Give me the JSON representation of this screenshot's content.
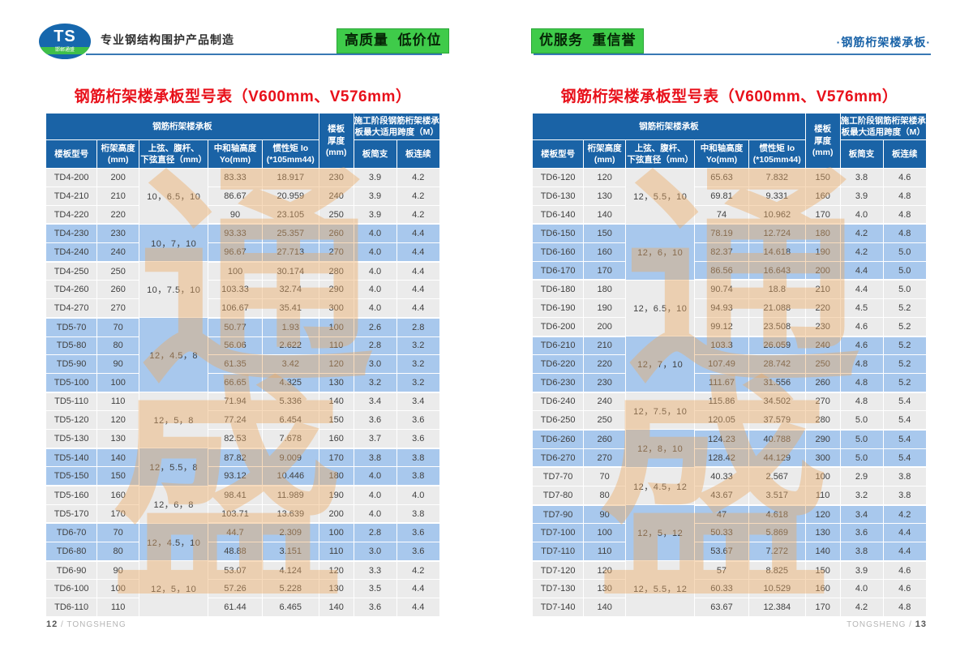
{
  "page": {
    "header": {
      "logo_text": "TS",
      "logo_subtext": "邯郸通盛",
      "tagline": "专业钢结构围护产品制造",
      "badge_quality": "高质量  低价位",
      "badge_service": "优服务  重信誉",
      "section_label": "·钢筋桁架楼承板·"
    },
    "footer": {
      "left_page_number": "12",
      "left_brand": " / TONGSHENG",
      "right_brand": "TONGSHENG / ",
      "right_page_number": "13"
    },
    "watermark_chars": [
      "通",
      "盛"
    ]
  },
  "table_header": {
    "group_title": "钢筋桁架楼承板",
    "col_model": "楼板型号",
    "col_truss_height": "桁架高度\n(mm)",
    "col_diameter": "上弦、腹杆、\n下弦直径（mm）",
    "col_neutral_axis": "中和轴高度\nYo(mm)",
    "col_inertia": "惯性矩 Io\n(*105mm44)",
    "col_thickness": "楼板\n厚度\n(mm)",
    "col_span_title": "施工阶段钢筋桁架楼承\n板最大适用跨度（M）",
    "col_simple": "板简支",
    "col_continuous": "板连续"
  },
  "tables": [
    {
      "title": "钢筋桁架楼承板型号表（V600mm、V576mm）",
      "groups": [
        {
          "diameter": "10，6.5，10",
          "rows": [
            [
              "TD4-200",
              "200",
              "83.33",
              "18.917",
              "230",
              "3.9",
              "4.2"
            ],
            [
              "TD4-210",
              "210",
              "86.67",
              "20.959",
              "240",
              "3.9",
              "4.2"
            ],
            [
              "TD4-220",
              "220",
              "90",
              "23.105",
              "250",
              "3.9",
              "4.2"
            ]
          ]
        },
        {
          "diameter": "10，7，10",
          "rows": [
            [
              "TD4-230",
              "230",
              "93.33",
              "25.357",
              "260",
              "4.0",
              "4.4"
            ],
            [
              "TD4-240",
              "240",
              "96.67",
              "27.713",
              "270",
              "4.0",
              "4.4"
            ]
          ]
        },
        {
          "diameter": "10，7.5，10",
          "rows": [
            [
              "TD4-250",
              "250",
              "100",
              "30.174",
              "280",
              "4.0",
              "4.4"
            ],
            [
              "TD4-260",
              "260",
              "103.33",
              "32.74",
              "290",
              "4.0",
              "4.4"
            ],
            [
              "TD4-270",
              "270",
              "106.67",
              "35.41",
              "300",
              "4.0",
              "4.4"
            ]
          ]
        },
        {
          "diameter": "12，4.5，8",
          "rows": [
            [
              "TD5-70",
              "70",
              "50.77",
              "1.93",
              "100",
              "2.6",
              "2.8"
            ],
            [
              "TD5-80",
              "80",
              "56.06",
              "2.622",
              "110",
              "2.8",
              "3.2"
            ],
            [
              "TD5-90",
              "90",
              "61.35",
              "3.42",
              "120",
              "3.0",
              "3.2"
            ],
            [
              "TD5-100",
              "100",
              "66.65",
              "4.325",
              "130",
              "3.2",
              "3.2"
            ]
          ]
        },
        {
          "diameter": "12，5，8",
          "rows": [
            [
              "TD5-110",
              "110",
              "71.94",
              "5.336",
              "140",
              "3.4",
              "3.4"
            ],
            [
              "TD5-120",
              "120",
              "77.24",
              "6.454",
              "150",
              "3.6",
              "3.6"
            ],
            [
              "TD5-130",
              "130",
              "82.53",
              "7.678",
              "160",
              "3.7",
              "3.6"
            ]
          ]
        },
        {
          "diameter": "12，5.5，8",
          "rows": [
            [
              "TD5-140",
              "140",
              "87.82",
              "9.009",
              "170",
              "3.8",
              "3.8"
            ],
            [
              "TD5-150",
              "150",
              "93.12",
              "10.446",
              "180",
              "4.0",
              "3.8"
            ]
          ]
        },
        {
          "diameter": "12，6，8",
          "rows": [
            [
              "TD5-160",
              "160",
              "98.41",
              "11.989",
              "190",
              "4.0",
              "4.0"
            ],
            [
              "TD5-170",
              "170",
              "103.71",
              "13.639",
              "200",
              "4.0",
              "3.8"
            ]
          ]
        },
        {
          "diameter": "12，4.5，10",
          "rows": [
            [
              "TD6-70",
              "70",
              "44.7",
              "2.309",
              "100",
              "2.8",
              "3.6"
            ],
            [
              "TD6-80",
              "80",
              "48.88",
              "3.151",
              "110",
              "3.0",
              "3.6"
            ]
          ]
        },
        {
          "diameter": "12，5，10",
          "rows": [
            [
              "TD6-90",
              "90",
              "53.07",
              "4.124",
              "120",
              "3.3",
              "4.2"
            ],
            [
              "TD6-100",
              "100",
              "57.26",
              "5.228",
              "130",
              "3.5",
              "4.4"
            ],
            [
              "TD6-110",
              "110",
              "61.44",
              "6.465",
              "140",
              "3.6",
              "4.4"
            ]
          ]
        }
      ]
    },
    {
      "title": "钢筋桁架楼承板型号表（V600mm、V576mm）",
      "groups": [
        {
          "diameter": "12，5.5，10",
          "rows": [
            [
              "TD6-120",
              "120",
              "65.63",
              "7.832",
              "150",
              "3.8",
              "4.6"
            ],
            [
              "TD6-130",
              "130",
              "69.81",
              "9.331",
              "160",
              "3.9",
              "4.8"
            ],
            [
              "TD6-140",
              "140",
              "74",
              "10.962",
              "170",
              "4.0",
              "4.8"
            ]
          ]
        },
        {
          "diameter": "12，6，10",
          "rows": [
            [
              "TD6-150",
              "150",
              "78.19",
              "12.724",
              "180",
              "4.2",
              "4.8"
            ],
            [
              "TD6-160",
              "160",
              "82.37",
              "14.618",
              "190",
              "4.2",
              "5.0"
            ],
            [
              "TD6-170",
              "170",
              "86.56",
              "16.643",
              "200",
              "4.4",
              "5.0"
            ]
          ]
        },
        {
          "diameter": "12，6.5，10",
          "rows": [
            [
              "TD6-180",
              "180",
              "90.74",
              "18.8",
              "210",
              "4.4",
              "5.0"
            ],
            [
              "TD6-190",
              "190",
              "94.93",
              "21.088",
              "220",
              "4.5",
              "5.2"
            ],
            [
              "TD6-200",
              "200",
              "99.12",
              "23.508",
              "230",
              "4.6",
              "5.2"
            ]
          ]
        },
        {
          "diameter": "12，7，10",
          "rows": [
            [
              "TD6-210",
              "210",
              "103.3",
              "26.059",
              "240",
              "4.6",
              "5.2"
            ],
            [
              "TD6-220",
              "220",
              "107.49",
              "28.742",
              "250",
              "4.8",
              "5.2"
            ],
            [
              "TD6-230",
              "230",
              "111.67",
              "31.556",
              "260",
              "4.8",
              "5.2"
            ]
          ]
        },
        {
          "diameter": "12，7.5，10",
          "rows": [
            [
              "TD6-240",
              "240",
              "115.86",
              "34.502",
              "270",
              "4.8",
              "5.4"
            ],
            [
              "TD6-250",
              "250",
              "120.05",
              "37.579",
              "280",
              "5.0",
              "5.4"
            ]
          ]
        },
        {
          "diameter": "12，8，10",
          "rows": [
            [
              "TD6-260",
              "260",
              "124.23",
              "40.788",
              "290",
              "5.0",
              "5.4"
            ],
            [
              "TD6-270",
              "270",
              "128.42",
              "44.129",
              "300",
              "5.0",
              "5.4"
            ]
          ]
        },
        {
          "diameter": "12，4.5，12",
          "rows": [
            [
              "TD7-70",
              "70",
              "40.33",
              "2.567",
              "100",
              "2.9",
              "3.8"
            ],
            [
              "TD7-80",
              "80",
              "43.67",
              "3.517",
              "110",
              "3.2",
              "3.8"
            ]
          ]
        },
        {
          "diameter": "12，5，12",
          "rows": [
            [
              "TD7-90",
              "90",
              "47",
              "4.618",
              "120",
              "3.4",
              "4.2"
            ],
            [
              "TD7-100",
              "100",
              "50.33",
              "5.869",
              "130",
              "3.6",
              "4.4"
            ],
            [
              "TD7-110",
              "110",
              "53.67",
              "7.272",
              "140",
              "3.8",
              "4.4"
            ]
          ]
        },
        {
          "diameter": "12，5.5，12",
          "rows": [
            [
              "TD7-120",
              "120",
              "57",
              "8.825",
              "150",
              "3.9",
              "4.6"
            ],
            [
              "TD7-130",
              "130",
              "60.33",
              "10.529",
              "160",
              "4.0",
              "4.6"
            ],
            [
              "TD7-140",
              "140",
              "63.67",
              "12.384",
              "170",
              "4.2",
              "4.8"
            ]
          ]
        }
      ]
    }
  ]
}
